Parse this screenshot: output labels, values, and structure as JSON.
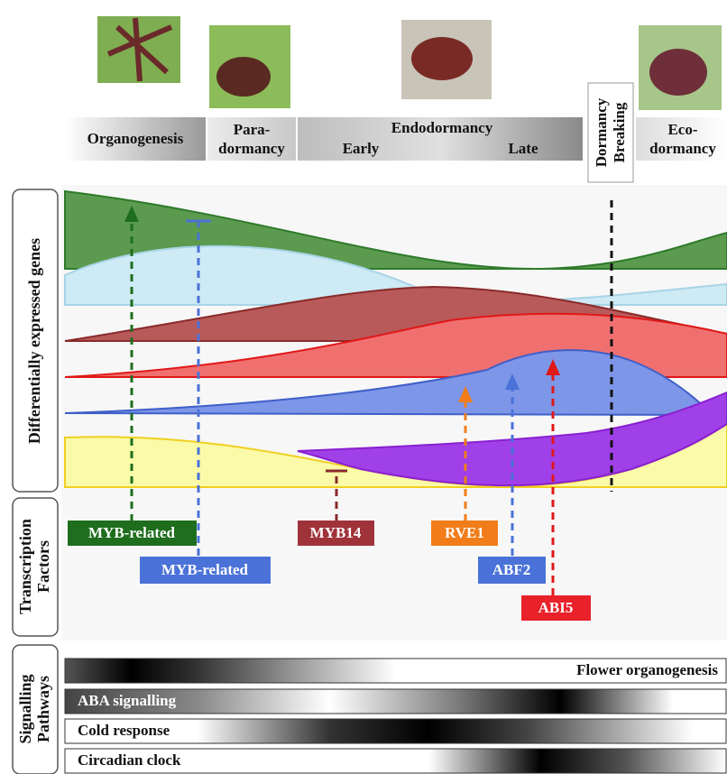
{
  "stages": {
    "organogenesis": "Organogenesis",
    "paradormancy": [
      "Para-",
      "dormancy"
    ],
    "endodormancy": "Endodormancy",
    "early": "Early",
    "late": "Late",
    "dormancy_breaking": [
      "Dormancy",
      "Breaking"
    ],
    "ecodormancy": [
      "Eco-",
      "dormancy"
    ]
  },
  "side_labels": {
    "genes": "Differentially expressed genes",
    "factors": [
      "Transcription",
      "Factors"
    ],
    "pathways": [
      "Signalling",
      "Pathways"
    ]
  },
  "transcription_factors": [
    "MYB-related",
    "MYB-related",
    "MYB14",
    "RVE1",
    "ABF2",
    "ABI5"
  ],
  "pathways": [
    "Flower organogenesis",
    "ABA signalling",
    "Cold response",
    "Circadian clock"
  ]
}
